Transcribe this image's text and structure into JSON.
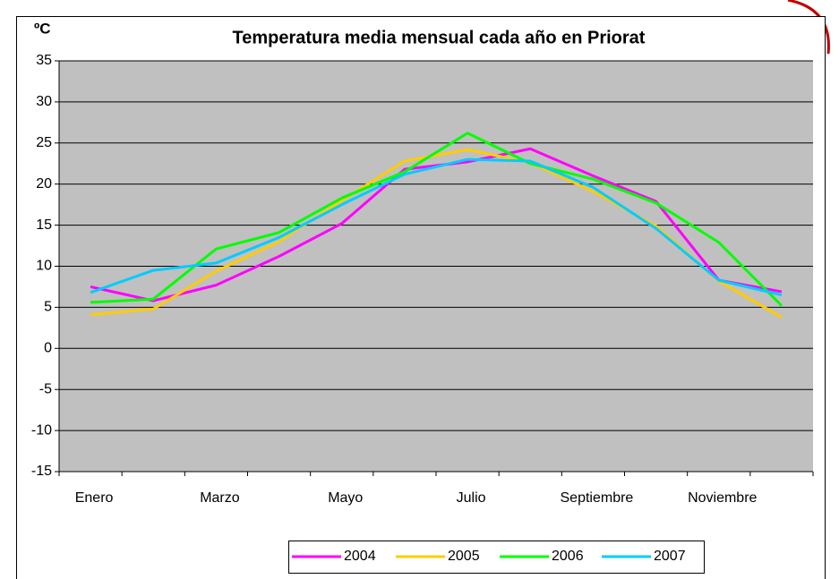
{
  "chart_data": {
    "type": "line",
    "title": "Temperatura media mensual cada año en Priorat",
    "y_label": "ºC",
    "categories": [
      "Enero",
      null,
      "Marzo",
      null,
      "Mayo",
      null,
      "Julio",
      null,
      "Septiembre",
      null,
      "Noviembre",
      null
    ],
    "series": [
      {
        "name": "2004",
        "color": "#ff00ff",
        "values": [
          7.5,
          5.8,
          7.7,
          11.2,
          15.2,
          21.8,
          22.7,
          24.3,
          21.0,
          17.9,
          8.3,
          6.9
        ]
      },
      {
        "name": "2005",
        "color": "#ffcc00",
        "values": [
          4.1,
          4.8,
          9.4,
          13.0,
          18.0,
          22.8,
          24.2,
          22.6,
          19.1,
          14.9,
          8.2,
          3.8
        ]
      },
      {
        "name": "2006",
        "color": "#00ff00",
        "values": [
          5.6,
          6.0,
          12.1,
          14.1,
          18.3,
          21.5,
          26.2,
          22.5,
          20.6,
          17.7,
          12.9,
          5.2
        ]
      },
      {
        "name": "2007",
        "color": "#00ccff",
        "values": [
          6.8,
          9.5,
          10.4,
          13.5,
          17.5,
          21.2,
          23.0,
          22.8,
          19.6,
          14.6,
          8.3,
          6.5
        ]
      }
    ],
    "ylim": [
      -15,
      35
    ],
    "yticks": [
      -15,
      -10,
      -5,
      0,
      5,
      10,
      15,
      20,
      25,
      30,
      35
    ],
    "grid": true,
    "legend": "bottom"
  }
}
